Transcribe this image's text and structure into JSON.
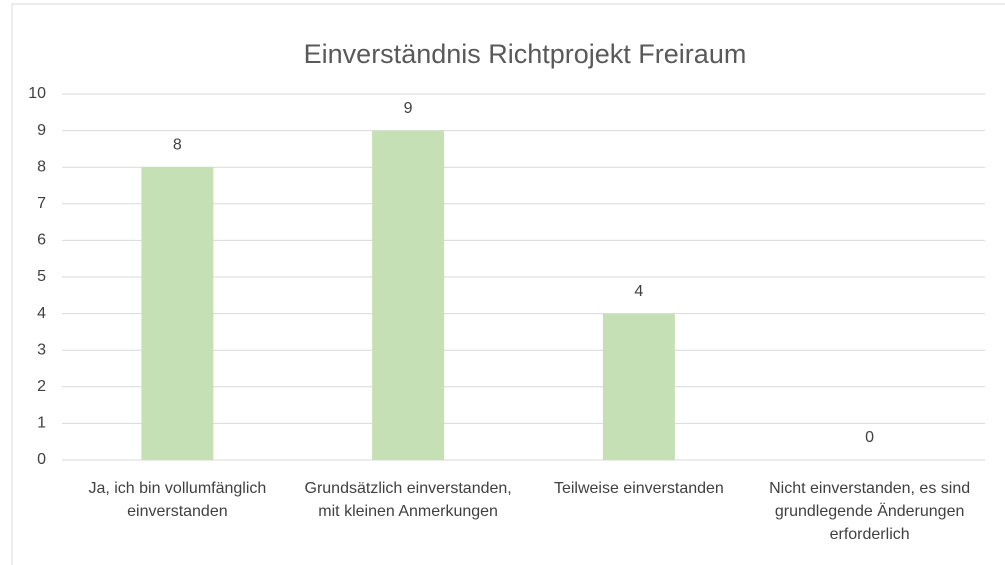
{
  "chart_data": {
    "type": "bar",
    "title": "Einverständnis Richtprojekt Freiraum",
    "categories": [
      "Ja, ich bin vollumfänglich einverstanden",
      "Grundsätzlich einverstanden, mit kleinen Anmerkungen",
      "Teilweise einverstanden",
      "Nicht einverstanden, es sind grundlegende Änderungen erforderlich"
    ],
    "values": [
      8,
      9,
      4,
      0
    ],
    "color": "#c5e0b4",
    "ylim": [
      0,
      10
    ],
    "yticks": [
      0,
      1,
      2,
      3,
      4,
      5,
      6,
      7,
      8,
      9,
      10
    ],
    "grid": true
  }
}
